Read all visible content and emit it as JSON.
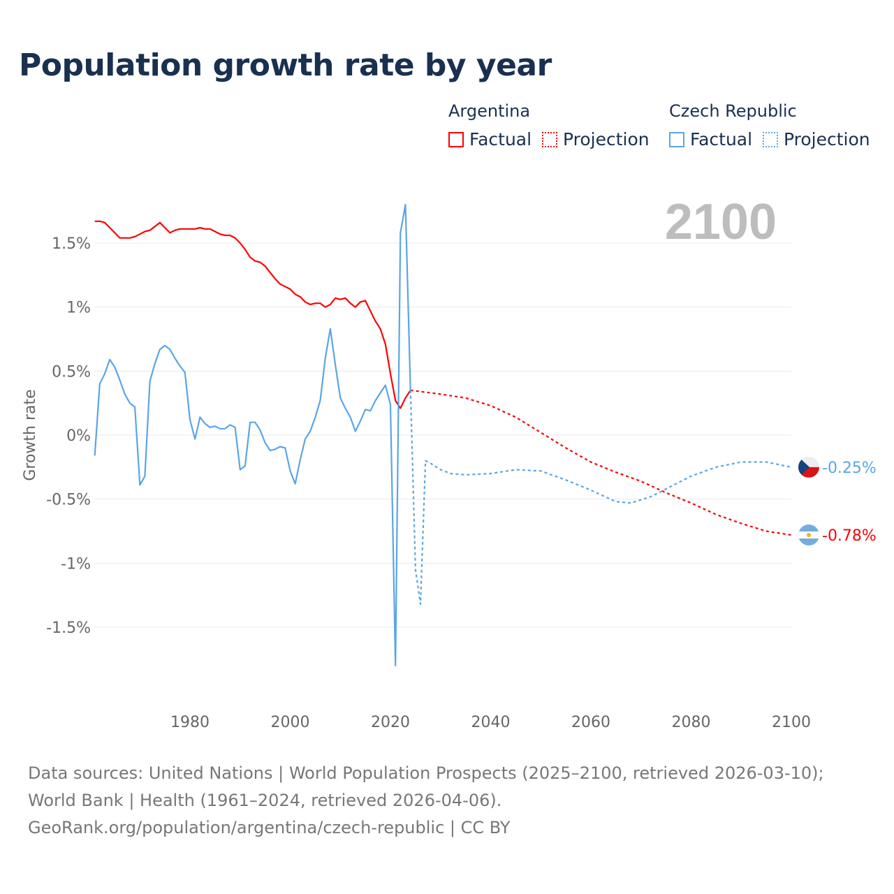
{
  "title": "Population growth rate by year",
  "legend": {
    "groups": [
      {
        "country": "Argentina",
        "factual": "Factual",
        "projection": "Projection",
        "color": "#ff0000"
      },
      {
        "country": "Czech Republic",
        "factual": "Factual",
        "projection": "Projection",
        "color": "#5aa5e8"
      }
    ]
  },
  "year_label": "2100",
  "footer": {
    "line1": "Data sources: United Nations | World Population Prospects (2025–2100, retrieved 2026-03-10); World Bank | Health (1961–2024, retrieved 2026-04-06).",
    "line2": "GeoRank.org/population/argentina/czech-republic | CC BY"
  },
  "chart_data": {
    "type": "line",
    "title": "Population growth rate by year",
    "xlabel": "",
    "ylabel": "Growth rate",
    "xlim": [
      1961,
      2100
    ],
    "ylim": [
      -2,
      1.9
    ],
    "x_ticks": [
      1980,
      2000,
      2020,
      2040,
      2060,
      2080,
      2100
    ],
    "x_tick_labels": [
      "1980",
      "2000",
      "2020",
      "2040",
      "2060",
      "2080",
      "2100"
    ],
    "y_ticks": [
      1.5,
      1,
      0.5,
      0,
      -0.5,
      -1,
      -1.5
    ],
    "y_tick_labels": [
      "1.5%",
      "1%",
      "0.5%",
      "0%",
      "-0.5%",
      "-1%",
      "-1.5%"
    ],
    "grid": true,
    "legend_position": "top-right",
    "series": [
      {
        "name": "Argentina Factual",
        "color": "#ff0000",
        "dashed": false,
        "x": [
          1961,
          1962,
          1963,
          1964,
          1965,
          1966,
          1967,
          1968,
          1969,
          1970,
          1971,
          1972,
          1973,
          1974,
          1975,
          1976,
          1977,
          1978,
          1979,
          1980,
          1981,
          1982,
          1983,
          1984,
          1985,
          1986,
          1987,
          1988,
          1989,
          1990,
          1991,
          1992,
          1993,
          1994,
          1995,
          1996,
          1997,
          1998,
          1999,
          2000,
          2001,
          2002,
          2003,
          2004,
          2005,
          2006,
          2007,
          2008,
          2009,
          2010,
          2011,
          2012,
          2013,
          2014,
          2015,
          2016,
          2017,
          2018,
          2019,
          2020,
          2021,
          2022,
          2023,
          2024
        ],
        "y": [
          1.67,
          1.67,
          1.66,
          1.62,
          1.58,
          1.54,
          1.54,
          1.54,
          1.55,
          1.57,
          1.59,
          1.6,
          1.63,
          1.66,
          1.62,
          1.58,
          1.6,
          1.61,
          1.61,
          1.61,
          1.61,
          1.62,
          1.61,
          1.61,
          1.59,
          1.57,
          1.56,
          1.56,
          1.54,
          1.5,
          1.45,
          1.39,
          1.36,
          1.35,
          1.32,
          1.27,
          1.22,
          1.18,
          1.16,
          1.14,
          1.1,
          1.08,
          1.04,
          1.02,
          1.03,
          1.03,
          1.0,
          1.02,
          1.07,
          1.06,
          1.07,
          1.03,
          1.0,
          1.04,
          1.05,
          0.97,
          0.89,
          0.83,
          0.71,
          0.48,
          0.27,
          0.21,
          0.29,
          0.35
        ]
      },
      {
        "name": "Argentina Projection",
        "color": "#ff0000",
        "dashed": true,
        "x": [
          2024,
          2030,
          2035,
          2040,
          2045,
          2050,
          2055,
          2060,
          2065,
          2070,
          2075,
          2080,
          2085,
          2090,
          2095,
          2100
        ],
        "y": [
          0.35,
          0.32,
          0.29,
          0.23,
          0.14,
          0.02,
          -0.1,
          -0.21,
          -0.29,
          -0.36,
          -0.45,
          -0.53,
          -0.62,
          -0.69,
          -0.75,
          -0.78
        ]
      },
      {
        "name": "Czech Republic Factual",
        "color": "#5aa5e8",
        "dashed": false,
        "x": [
          1961,
          1962,
          1963,
          1964,
          1965,
          1966,
          1967,
          1968,
          1969,
          1970,
          1971,
          1972,
          1973,
          1974,
          1975,
          1976,
          1977,
          1978,
          1979,
          1980,
          1981,
          1982,
          1983,
          1984,
          1985,
          1986,
          1987,
          1988,
          1989,
          1990,
          1991,
          1992,
          1993,
          1994,
          1995,
          1996,
          1997,
          1998,
          1999,
          2000,
          2001,
          2002,
          2003,
          2004,
          2005,
          2006,
          2007,
          2008,
          2009,
          2010,
          2011,
          2012,
          2013,
          2014,
          2015,
          2016,
          2017,
          2018,
          2019,
          2020,
          2021,
          2022,
          2023,
          2024
        ],
        "y": [
          -0.16,
          0.4,
          0.48,
          0.59,
          0.53,
          0.43,
          0.32,
          0.25,
          0.22,
          -0.39,
          -0.32,
          0.42,
          0.56,
          0.67,
          0.7,
          0.67,
          0.6,
          0.54,
          0.49,
          0.12,
          -0.03,
          0.14,
          0.09,
          0.06,
          0.07,
          0.05,
          0.05,
          0.08,
          0.06,
          -0.27,
          -0.24,
          0.1,
          0.1,
          0.04,
          -0.06,
          -0.12,
          -0.11,
          -0.09,
          -0.1,
          -0.28,
          -0.38,
          -0.19,
          -0.03,
          0.03,
          0.14,
          0.27,
          0.6,
          0.83,
          0.55,
          0.29,
          0.21,
          0.14,
          0.03,
          0.11,
          0.2,
          0.19,
          0.27,
          0.33,
          0.39,
          0.24,
          -1.8,
          1.58,
          1.8,
          0.35
        ]
      },
      {
        "name": "Czech Republic Projection",
        "color": "#5aa5e8",
        "dashed": true,
        "x": [
          2024,
          2025,
          2026,
          2027,
          2028,
          2030,
          2032,
          2035,
          2040,
          2045,
          2050,
          2055,
          2060,
          2065,
          2068,
          2072,
          2075,
          2080,
          2085,
          2090,
          2095,
          2100
        ],
        "y": [
          0.35,
          -1.05,
          -1.32,
          -0.2,
          -0.22,
          -0.27,
          -0.3,
          -0.31,
          -0.3,
          -0.27,
          -0.28,
          -0.35,
          -0.43,
          -0.52,
          -0.53,
          -0.48,
          -0.42,
          -0.32,
          -0.25,
          -0.21,
          -0.21,
          -0.25
        ]
      }
    ],
    "end_labels": [
      {
        "country": "Czech Republic",
        "value": -0.25,
        "label": "-0.25%",
        "color": "#5aa5e8"
      },
      {
        "country": "Argentina",
        "value": -0.78,
        "label": "-0.78%",
        "color": "#ff0000"
      }
    ]
  }
}
